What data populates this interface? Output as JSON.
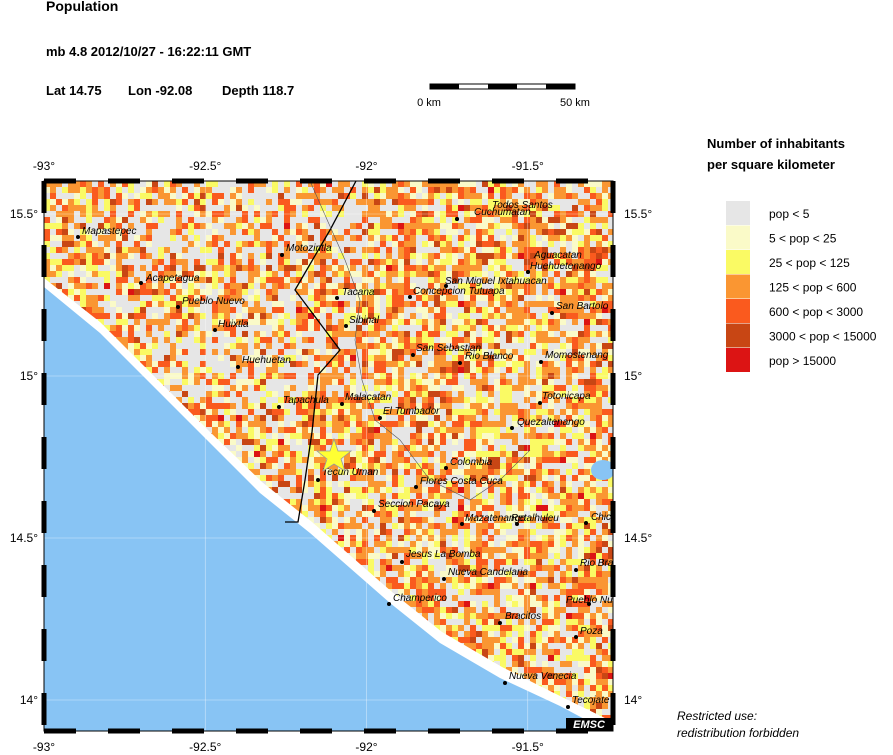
{
  "header": {
    "title": "Population",
    "event": "mb 4.8  2012/10/27 - 16:22:11 GMT",
    "lat": "Lat 14.75",
    "lon": "Lon -92.08",
    "depth": "Depth 118.7"
  },
  "scale_bar": {
    "start": "0 km",
    "end": "50 km"
  },
  "map": {
    "lon_ticks": [
      {
        "value": -93,
        "label": "-93°"
      },
      {
        "value": -92.5,
        "label": "-92.5°"
      },
      {
        "value": -92,
        "label": "-92°"
      },
      {
        "value": -91.5,
        "label": "-91.5°"
      }
    ],
    "lat_ticks": [
      {
        "value": 15.5,
        "label": "15.5°"
      },
      {
        "value": 15,
        "label": "15°"
      },
      {
        "value": 14.5,
        "label": "14.5°"
      },
      {
        "value": 14,
        "label": "14°"
      }
    ],
    "cities": [
      "Mapastepec",
      "Motozintla",
      "Acapetagua",
      "Pueblo Nuevo",
      "Huixtla",
      "Huehuetan",
      "Tapachula",
      "Tacana",
      "Sibinal",
      "Malacatan",
      "El Tumbador",
      "Tecun Uman",
      "Todos Santos",
      "Cuchumatan",
      "Aguacatan",
      "Huehuetenango",
      "San Miguel Ixtahuacan",
      "Concepcion Tutuapa",
      "San Bartolo",
      "San Sebastian",
      "Rio Blanco",
      "Momostenang",
      "Totonicapa",
      "Quezaltenango",
      "Colombia",
      "Flores Costa Cuca",
      "Seccion Pacaya",
      "Mazatenango",
      "Retalhuleu",
      "Chicac",
      "Jesus La Bomba",
      "Rio Bra",
      "Nueva Candelaria",
      "Champerico",
      "Pueblo Nu",
      "Bracitos",
      "Poza",
      "Nueva Venecia",
      "Tecojate"
    ],
    "credit": "EMSC"
  },
  "legend": {
    "title_lines": [
      "Number of inhabitants",
      "per square kilometer"
    ],
    "items": [
      {
        "label": "pop < 5",
        "color": "#e6e6e6"
      },
      {
        "label": "5 < pop < 25",
        "color": "#fafac8"
      },
      {
        "label": "25 < pop < 125",
        "color": "#fafa64"
      },
      {
        "label": "125 < pop < 600",
        "color": "#fa9632"
      },
      {
        "label": "600 < pop < 3000",
        "color": "#fa5a1e"
      },
      {
        "label": "3000 < pop < 15000",
        "color": "#c84614"
      },
      {
        "label": "pop > 15000",
        "color": "#dc1414"
      }
    ]
  },
  "notice": [
    "Restricted use:",
    "redistribution forbidden"
  ]
}
